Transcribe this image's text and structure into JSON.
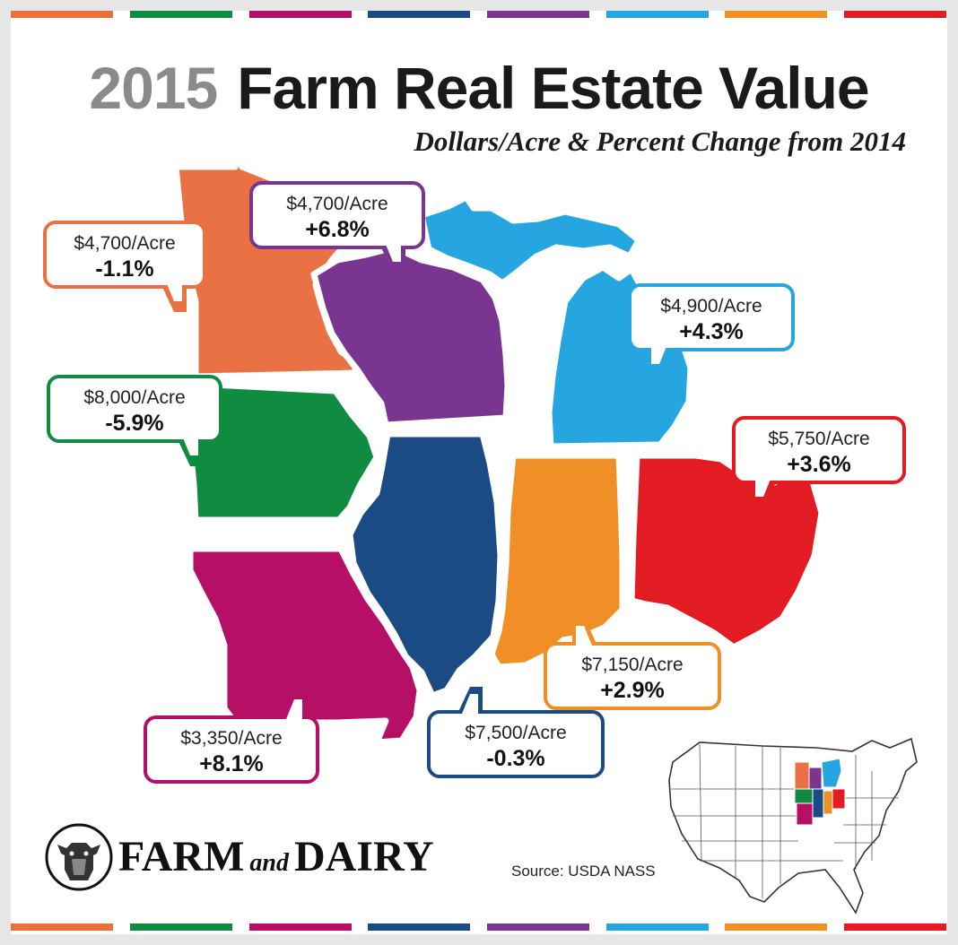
{
  "title": {
    "year": "2015",
    "text": "Farm Real Estate Value"
  },
  "subtitle": "Dollars/Acre & Percent Change from 2014",
  "stripe_colors": [
    "#e8713c",
    "#0f8c40",
    "#b50f66",
    "#1b4b85",
    "#7a3591",
    "#25a6e1",
    "#f08f25",
    "#e31b23"
  ],
  "states": [
    {
      "id": "minnesota",
      "color": "#ea7144",
      "price": "$4,700/Acre",
      "change": "-1.1%"
    },
    {
      "id": "wisconsin",
      "color": "#7a3591",
      "price": "$4,700/Acre",
      "change": "+6.8%"
    },
    {
      "id": "michigan",
      "color": "#25a6e1",
      "price": "$4,900/Acre",
      "change": "+4.3%"
    },
    {
      "id": "iowa",
      "color": "#0f8c40",
      "price": "$8,000/Acre",
      "change": "-5.9%"
    },
    {
      "id": "ohio",
      "color": "#e31b23",
      "price": "$5,750/Acre",
      "change": "+3.6%"
    },
    {
      "id": "indiana",
      "color": "#f08f25",
      "price": "$7,150/Acre",
      "change": "+2.9%"
    },
    {
      "id": "illinois",
      "color": "#1b4b85",
      "price": "$7,500/Acre",
      "change": "-0.3%"
    },
    {
      "id": "missouri",
      "color": "#b50f66",
      "price": "$3,350/Acre",
      "change": "+8.1%"
    }
  ],
  "brand": {
    "part1": "FARM",
    "part2": "and",
    "part3": "DAIRY"
  },
  "source": "Source: USDA NASS"
}
